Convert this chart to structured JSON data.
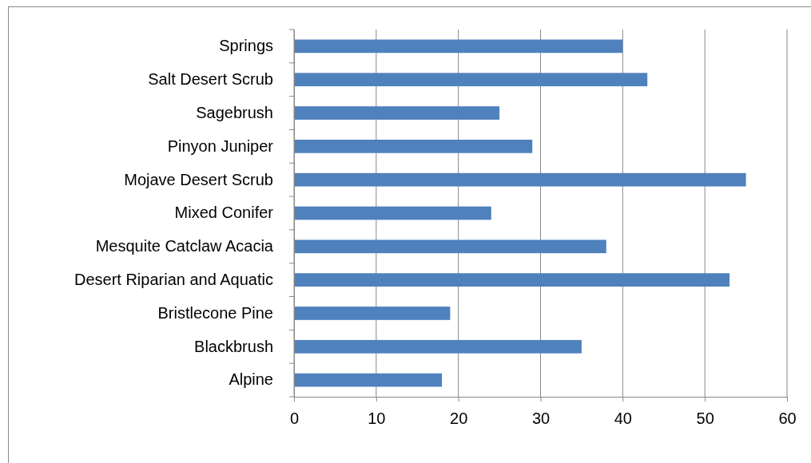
{
  "chart_data": {
    "type": "bar",
    "orientation": "horizontal",
    "categories": [
      "Springs",
      "Salt Desert Scrub",
      "Sagebrush",
      "Pinyon Juniper",
      "Mojave Desert Scrub",
      "Mixed Conifer",
      "Mesquite Catclaw Acacia",
      "Desert Riparian and Aquatic",
      "Bristlecone Pine",
      "Blackbrush",
      "Alpine"
    ],
    "values": [
      40,
      43,
      25,
      29,
      55,
      24,
      38,
      53,
      19,
      35,
      18
    ],
    "color": "#4f81bd",
    "xlim": [
      0,
      60
    ],
    "xticks": [
      0,
      10,
      20,
      30,
      40,
      50,
      60
    ],
    "grid": "x"
  }
}
